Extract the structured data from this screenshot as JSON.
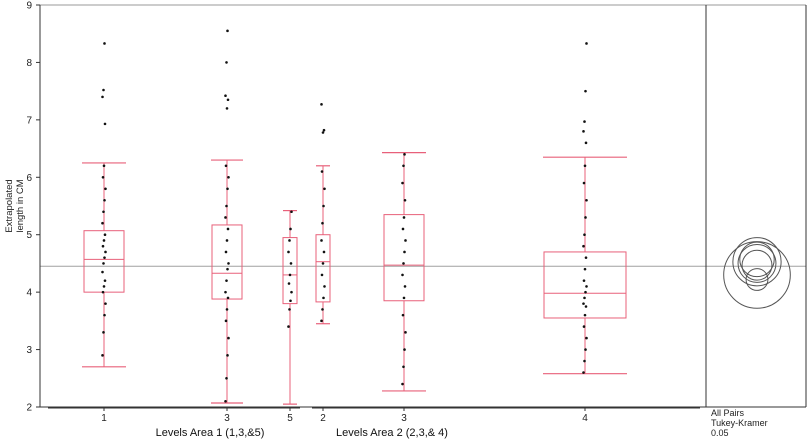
{
  "chart_data": {
    "type": "box",
    "ylabel_lines": [
      "Extrapolated",
      "length in CM"
    ],
    "ylim": [
      2,
      9
    ],
    "yticks": [
      2,
      3,
      4,
      5,
      6,
      7,
      8,
      9
    ],
    "grand_mean": 4.45,
    "categories": [
      {
        "label": "1",
        "group": "Levels Area 1 (1,3,&5)",
        "q1": 4.0,
        "median": 4.57,
        "q3": 5.07,
        "whisker_low": 2.7,
        "whisker_high": 6.25,
        "outliers": [
          6.93,
          7.4,
          7.52,
          8.33
        ],
        "points": [
          2.9,
          3.3,
          3.6,
          3.8,
          4.0,
          4.1,
          4.2,
          4.35,
          4.5,
          4.6,
          4.7,
          4.8,
          4.9,
          5.0,
          5.2,
          5.4,
          5.6,
          5.8,
          6.0,
          6.2
        ]
      },
      {
        "label": "3",
        "group": "Levels Area 1 (1,3,&5)",
        "q1": 3.88,
        "median": 4.33,
        "q3": 5.17,
        "whisker_low": 2.07,
        "whisker_high": 6.3,
        "outliers": [
          7.2,
          7.35,
          7.42,
          8.0,
          8.55
        ],
        "points": [
          2.1,
          2.5,
          2.9,
          3.2,
          3.5,
          3.7,
          3.9,
          4.0,
          4.2,
          4.4,
          4.5,
          4.7,
          4.9,
          5.1,
          5.3,
          5.5,
          5.8,
          6.0,
          6.2
        ]
      },
      {
        "label": "5",
        "group": "Levels Area 1 (1,3,&5)",
        "q1": 3.8,
        "median": 4.3,
        "q3": 4.95,
        "whisker_low": 2.05,
        "whisker_high": 5.42,
        "outliers": [],
        "points": [
          3.4,
          3.7,
          3.85,
          4.0,
          4.15,
          4.3,
          4.5,
          4.7,
          4.9,
          5.1,
          5.4
        ]
      },
      {
        "label": "2",
        "group": "Levels Area 2 (2,3,& 4)",
        "q1": 3.83,
        "median": 4.53,
        "q3": 5.0,
        "whisker_low": 3.45,
        "whisker_high": 6.2,
        "outliers": [
          6.78,
          6.82,
          7.27
        ],
        "points": [
          3.5,
          3.7,
          3.9,
          4.1,
          4.3,
          4.5,
          4.7,
          4.9,
          5.2,
          5.5,
          5.8,
          6.1
        ]
      },
      {
        "label": "3",
        "group": "Levels Area 2 (2,3,& 4)",
        "q1": 3.85,
        "median": 4.47,
        "q3": 5.35,
        "whisker_low": 2.28,
        "whisker_high": 6.43,
        "outliers": [],
        "points": [
          2.4,
          2.7,
          3.0,
          3.3,
          3.6,
          3.9,
          4.1,
          4.3,
          4.5,
          4.7,
          4.9,
          5.1,
          5.3,
          5.6,
          5.9,
          6.2,
          6.4
        ]
      },
      {
        "label": "4",
        "group": "Levels Area 2 (2,3,& 4)",
        "q1": 3.55,
        "median": 3.98,
        "q3": 4.7,
        "whisker_low": 2.58,
        "whisker_high": 6.35,
        "outliers": [
          6.6,
          6.8,
          6.97,
          7.5,
          8.33
        ],
        "points": [
          2.6,
          2.8,
          3.0,
          3.2,
          3.4,
          3.6,
          3.75,
          3.8,
          3.9,
          4.0,
          4.1,
          4.2,
          4.4,
          4.6,
          4.8,
          5.0,
          5.3,
          5.6,
          5.9,
          6.2
        ]
      }
    ],
    "groups": [
      "Levels Area 1 (1,3,&5)",
      "Levels Area 2 (2,3,& 4)"
    ],
    "comparison": {
      "label_lines": [
        "All Pairs",
        "Tukey-Kramer",
        "0.05"
      ],
      "circles": [
        {
          "center": 4.57,
          "radius": 0.3
        },
        {
          "center": 4.5,
          "radius": 0.33
        },
        {
          "center": 4.3,
          "radius": 0.58
        },
        {
          "center": 4.53,
          "radius": 0.42
        },
        {
          "center": 4.47,
          "radius": 0.26
        },
        {
          "center": 4.22,
          "radius": 0.19
        }
      ]
    },
    "colors": {
      "box": "#e8607a",
      "points": "#111111",
      "mean_line": "#a0a0a0",
      "circles": "#555555",
      "frame": "#333333"
    }
  }
}
